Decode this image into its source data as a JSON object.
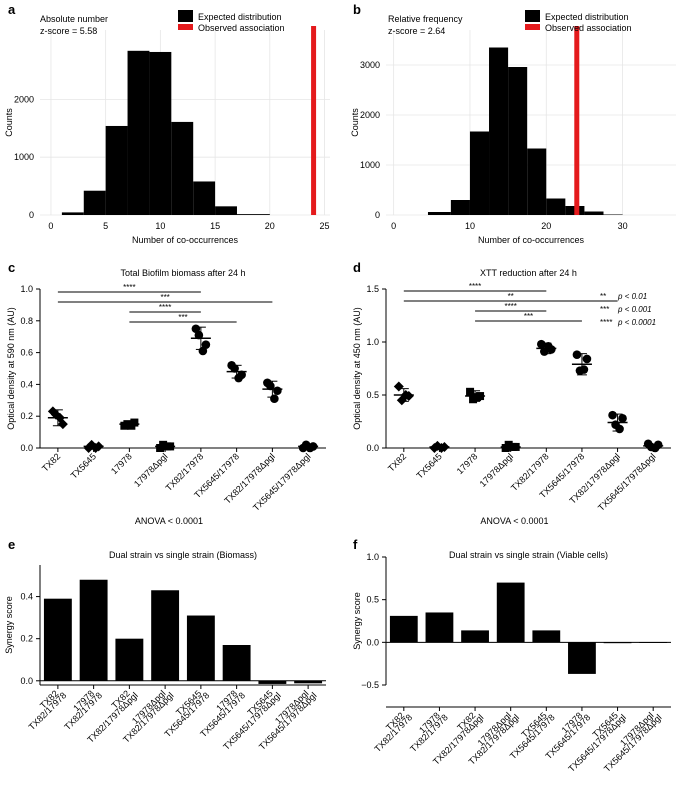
{
  "figure": {
    "panels": [
      {
        "id": "a",
        "label": "a"
      },
      {
        "id": "b",
        "label": "b"
      },
      {
        "id": "c",
        "label": "c"
      },
      {
        "id": "d",
        "label": "d"
      },
      {
        "id": "e",
        "label": "e"
      },
      {
        "id": "f",
        "label": "f"
      }
    ]
  },
  "chart_data": [
    {
      "panel": "a",
      "type": "bar",
      "subtype": "histogram",
      "title": "",
      "annotation": [
        "Absolute number",
        "z-score = 5.58"
      ],
      "xlabel": "Number of co-occurrences",
      "ylabel": "Counts",
      "xlim": [
        -1,
        25.5
      ],
      "ylim": [
        0,
        3200
      ],
      "xticks": [
        0,
        5,
        10,
        15,
        20,
        25
      ],
      "yticks": [
        0,
        1000,
        2000
      ],
      "grid": true,
      "bins": [
        {
          "x0": 1,
          "x1": 3,
          "count": 45
        },
        {
          "x0": 3,
          "x1": 5,
          "count": 420
        },
        {
          "x0": 5,
          "x1": 7,
          "count": 1540
        },
        {
          "x0": 7,
          "x1": 9,
          "count": 2840
        },
        {
          "x0": 9,
          "x1": 11,
          "count": 2820
        },
        {
          "x0": 11,
          "x1": 13,
          "count": 1610
        },
        {
          "x0": 13,
          "x1": 15,
          "count": 580
        },
        {
          "x0": 15,
          "x1": 17,
          "count": 150
        },
        {
          "x0": 17,
          "x1": 20,
          "count": 15
        }
      ],
      "observed": 24,
      "legend": [
        {
          "label": "Expected distribution",
          "color": "#000000"
        },
        {
          "label": "Observed association",
          "color": "#e41a1c"
        }
      ]
    },
    {
      "panel": "b",
      "type": "bar",
      "subtype": "histogram",
      "title": "",
      "annotation": [
        "Relative frequency",
        "z-score = 2.64"
      ],
      "xlabel": "Number of co-occurrences",
      "ylabel": "Counts",
      "xlim": [
        -1,
        37
      ],
      "ylim": [
        0,
        3700
      ],
      "xticks": [
        0,
        10,
        20,
        30
      ],
      "yticks": [
        0,
        1000,
        2000,
        3000
      ],
      "grid": true,
      "bins": [
        {
          "x0": 4.5,
          "x1": 7.5,
          "count": 60
        },
        {
          "x0": 7.5,
          "x1": 10,
          "count": 300
        },
        {
          "x0": 10,
          "x1": 12.5,
          "count": 1670
        },
        {
          "x0": 12.5,
          "x1": 15,
          "count": 3350
        },
        {
          "x0": 15,
          "x1": 17.5,
          "count": 2960
        },
        {
          "x0": 17.5,
          "x1": 20,
          "count": 1330
        },
        {
          "x0": 20,
          "x1": 22.5,
          "count": 330
        },
        {
          "x0": 22.5,
          "x1": 25,
          "count": 180
        },
        {
          "x0": 25,
          "x1": 27.5,
          "count": 70
        },
        {
          "x0": 27.5,
          "x1": 30,
          "count": 10
        }
      ],
      "observed": 24,
      "legend": [
        {
          "label": "Expected distribution",
          "color": "#000000"
        },
        {
          "label": "Observed association",
          "color": "#e41a1c"
        }
      ]
    },
    {
      "panel": "c",
      "type": "scatter",
      "subtype": "dot-plot",
      "title": "Total Biofilm biomass after 24 h",
      "ylabel": "Optical density at 590 nm (AU)",
      "footnote": "ANOVA < 0.0001",
      "ylim": [
        0,
        1.0
      ],
      "yticks": [
        "0.0",
        "0.2",
        "0.4",
        "0.6",
        "0.8",
        "1.0"
      ],
      "categories": [
        "TX82",
        "TX5645",
        "17978",
        "17978Δpgl",
        "TX82/17978",
        "TX5645/17978",
        "TX82/17978Δpgl",
        "TX5645/17978Δpgl"
      ],
      "means": [
        0.19,
        0.01,
        0.15,
        0.01,
        0.69,
        0.48,
        0.37,
        0.01
      ],
      "sd": [
        0.05,
        0.005,
        0.02,
        0.005,
        0.07,
        0.04,
        0.05,
        0.005
      ],
      "points": [
        [
          0.23,
          0.15,
          0.21,
          0.19
        ],
        [
          0.0,
          0.01,
          0.02,
          0.0
        ],
        [
          0.14,
          0.16,
          0.15,
          0.14
        ],
        [
          0.0,
          0.01,
          0.02,
          0.01
        ],
        [
          0.75,
          0.65,
          0.71,
          0.61
        ],
        [
          0.52,
          0.46,
          0.5,
          0.44
        ],
        [
          0.41,
          0.36,
          0.39,
          0.31
        ],
        [
          0.0,
          0.01,
          0.02,
          0.0
        ]
      ],
      "markers": [
        "diamond",
        "diamond",
        "square",
        "square",
        "circle",
        "circle",
        "circle",
        "circle"
      ],
      "significance": [
        {
          "from": 0,
          "to": 4,
          "label": "****"
        },
        {
          "from": 0,
          "to": 6,
          "label": "***"
        },
        {
          "from": 2,
          "to": 4,
          "label": "****"
        },
        {
          "from": 2,
          "to": 5,
          "label": "***"
        }
      ]
    },
    {
      "panel": "d",
      "type": "scatter",
      "subtype": "dot-plot",
      "title": "XTT reduction after 24 h",
      "ylabel": "Optical density at 450 nm (AU)",
      "footnote": "ANOVA < 0.0001",
      "ylim": [
        0,
        1.5
      ],
      "yticks": [
        "0.0",
        "0.5",
        "1.0",
        "1.5"
      ],
      "categories": [
        "TX82",
        "TX5645",
        "17978",
        "17978Δpgl",
        "TX82/17978",
        "TX5645/17978",
        "TX82/17978Δpgl",
        "TX5645/17978Δpgl"
      ],
      "means": [
        0.5,
        0.01,
        0.49,
        0.01,
        0.94,
        0.79,
        0.24,
        0.02
      ],
      "sd": [
        0.06,
        0.005,
        0.05,
        0.005,
        0.05,
        0.1,
        0.08,
        0.01
      ],
      "points": [
        [
          0.58,
          0.49,
          0.45,
          0.5
        ],
        [
          0.0,
          0.01,
          0.02,
          0.0
        ],
        [
          0.53,
          0.49,
          0.46,
          0.48
        ],
        [
          0.0,
          0.01,
          0.03,
          0.01
        ],
        [
          0.98,
          0.93,
          0.91,
          0.96
        ],
        [
          0.88,
          0.84,
          0.73,
          0.74
        ],
        [
          0.31,
          0.28,
          0.22,
          0.18
        ],
        [
          0.04,
          0.03,
          0.01,
          0.0
        ]
      ],
      "markers": [
        "diamond",
        "diamond",
        "square",
        "square",
        "circle",
        "circle",
        "circle",
        "circle"
      ],
      "significance": [
        {
          "from": 0,
          "to": 4,
          "label": "****"
        },
        {
          "from": 0,
          "to": 6,
          "label": "**"
        },
        {
          "from": 2,
          "to": 4,
          "label": "****"
        },
        {
          "from": 2,
          "to": 5,
          "label": "***"
        }
      ],
      "legend": [
        {
          "stars": "**",
          "text": "p < 0.01"
        },
        {
          "stars": "***",
          "text": "p < 0.001"
        },
        {
          "stars": "****",
          "text": "p < 0.0001"
        }
      ]
    },
    {
      "panel": "e",
      "type": "bar",
      "title": "Dual strain vs single strain (Biomass)",
      "ylabel": "Synergy score",
      "ylim": [
        -0.02,
        0.55
      ],
      "yticks": [
        "0.0",
        "0.2",
        "0.4"
      ],
      "categories": [
        [
          "TX82",
          "TX82/17978"
        ],
        [
          "17978",
          "TX82/17978"
        ],
        [
          "TX82",
          "TX82/17978Δpgl"
        ],
        [
          "17978Δpgl",
          "TX82/17978Δpgl"
        ],
        [
          "TX5645",
          "TX5645/17978"
        ],
        [
          "17978",
          "TX5645/17978"
        ],
        [
          "TX5645",
          "TX5645/17978Δpgl"
        ],
        [
          "17978Δpgl",
          "TX5645/17978Δpgl"
        ]
      ],
      "values": [
        0.39,
        0.48,
        0.2,
        0.43,
        0.31,
        0.17,
        -0.015,
        -0.012
      ]
    },
    {
      "panel": "f",
      "type": "bar",
      "title": "Dual strain vs single strain (Viable cells)",
      "ylabel": "Synergy score",
      "ylim": [
        -0.5,
        1.0
      ],
      "yticks": [
        "−0.5",
        "0.0",
        "0.5",
        "1.0"
      ],
      "categories": [
        [
          "TX82",
          "TX82/17978"
        ],
        [
          "17978",
          "TX82/17978"
        ],
        [
          "TX82",
          "TX82/17978Δpgl"
        ],
        [
          "17978Δpgl",
          "TX82/17978Δpgl"
        ],
        [
          "TX5645",
          "TX5645/17978"
        ],
        [
          "17978",
          "TX5645/17978"
        ],
        [
          "TX5645",
          "TX5645/17978Δpgl"
        ],
        [
          "17978Δpgl",
          "TX5645/17978Δpgl"
        ]
      ],
      "values": [
        0.31,
        0.35,
        0.14,
        0.7,
        0.14,
        -0.37,
        -0.01,
        0.0
      ]
    }
  ]
}
